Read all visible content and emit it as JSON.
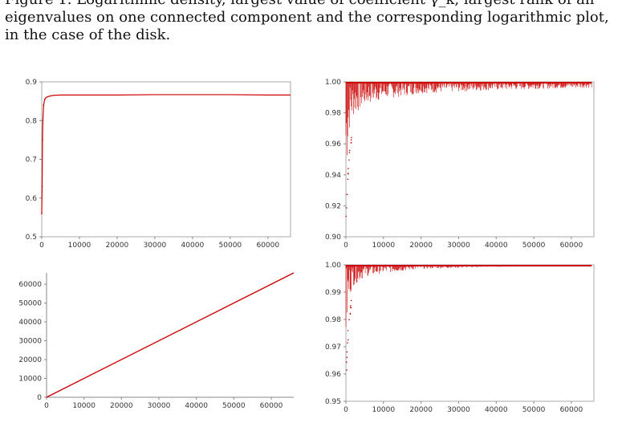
{
  "caption": {
    "line1": "Figure 1. Logarithmic density, largest value of coefficient γ_k, largest rank of an",
    "line2": "eigenvalues on one connected component and the corresponding logarithmic plot,",
    "line3": "in the case of the disk."
  },
  "colors": {
    "data": "#cc0000",
    "axis": "#888888"
  },
  "chart_data": [
    {
      "type": "scatter",
      "xlim": [
        0,
        66000
      ],
      "ylim": [
        0.5,
        0.9
      ],
      "xticks": [
        0,
        10000,
        20000,
        30000,
        40000,
        50000,
        60000
      ],
      "xtick_labels": [
        "0",
        "10000",
        "20000",
        "30000",
        "40000",
        "50000",
        "60000"
      ],
      "yticks": [
        0.5,
        0.6,
        0.7,
        0.8,
        0.9
      ],
      "ytick_labels": [
        "0.5",
        "0.6",
        "0.7",
        "0.8",
        "0.9"
      ],
      "framed": true,
      "x": [
        0,
        100,
        200,
        300,
        500,
        800,
        1200,
        2000,
        3000,
        5000,
        8000,
        12000,
        20000,
        30000,
        40000,
        50000,
        60000,
        66000
      ],
      "y": [
        0.56,
        0.63,
        0.75,
        0.8,
        0.84,
        0.855,
        0.86,
        0.863,
        0.865,
        0.866,
        0.866,
        0.866,
        0.866,
        0.867,
        0.867,
        0.867,
        0.866,
        0.866
      ]
    },
    {
      "type": "scatter",
      "xlim": [
        0,
        66000
      ],
      "ylim": [
        0.9,
        1.0
      ],
      "xticks": [
        0,
        10000,
        20000,
        30000,
        40000,
        50000,
        60000
      ],
      "xtick_labels": [
        "0",
        "10000",
        "20000",
        "30000",
        "40000",
        "50000",
        "60000"
      ],
      "yticks": [
        0.9,
        0.92,
        0.94,
        0.96,
        0.98,
        1.0
      ],
      "ytick_labels": [
        "0.90",
        "0.92",
        "0.94",
        "0.96",
        "0.98",
        "1.00"
      ],
      "framed": true,
      "band_top": 1.0,
      "band_low": [
        [
          0,
          0.91
        ],
        [
          500,
          0.94
        ],
        [
          1000,
          0.96
        ],
        [
          2000,
          0.97
        ],
        [
          5000,
          0.98
        ],
        [
          10000,
          0.985
        ],
        [
          20000,
          0.99
        ],
        [
          40000,
          0.993
        ],
        [
          66000,
          0.995
        ]
      ]
    },
    {
      "type": "line",
      "xlim": [
        0,
        66000
      ],
      "ylim": [
        0,
        66000
      ],
      "xticks": [
        0,
        10000,
        20000,
        30000,
        40000,
        50000,
        60000
      ],
      "xtick_labels": [
        "0",
        "10000",
        "20000",
        "30000",
        "40000",
        "50000",
        "60000"
      ],
      "yticks": [
        0,
        10000,
        20000,
        30000,
        40000,
        50000,
        60000
      ],
      "ytick_labels": [
        "0",
        "10000",
        "20000",
        "30000",
        "40000",
        "50000",
        "60000"
      ],
      "framed": false,
      "x": [
        0,
        66000
      ],
      "y": [
        0,
        66000
      ]
    },
    {
      "type": "scatter",
      "xlim": [
        0,
        66000
      ],
      "ylim": [
        0.95,
        1.0
      ],
      "xticks": [
        0,
        10000,
        20000,
        30000,
        40000,
        50000,
        60000
      ],
      "xtick_labels": [
        "0",
        "10000",
        "20000",
        "30000",
        "40000",
        "50000",
        "60000"
      ],
      "yticks": [
        0.95,
        0.96,
        0.97,
        0.98,
        0.99,
        1.0
      ],
      "ytick_labels": [
        "0.95",
        "0.96",
        "0.97",
        "0.98",
        "0.99",
        "1.00"
      ],
      "framed": true,
      "band_top": 1.0,
      "band_low": [
        [
          0,
          0.96
        ],
        [
          500,
          0.975
        ],
        [
          1000,
          0.985
        ],
        [
          2000,
          0.99
        ],
        [
          5000,
          0.994
        ],
        [
          10000,
          0.996
        ],
        [
          20000,
          0.998
        ],
        [
          40000,
          0.999
        ],
        [
          66000,
          0.9995
        ]
      ]
    }
  ]
}
